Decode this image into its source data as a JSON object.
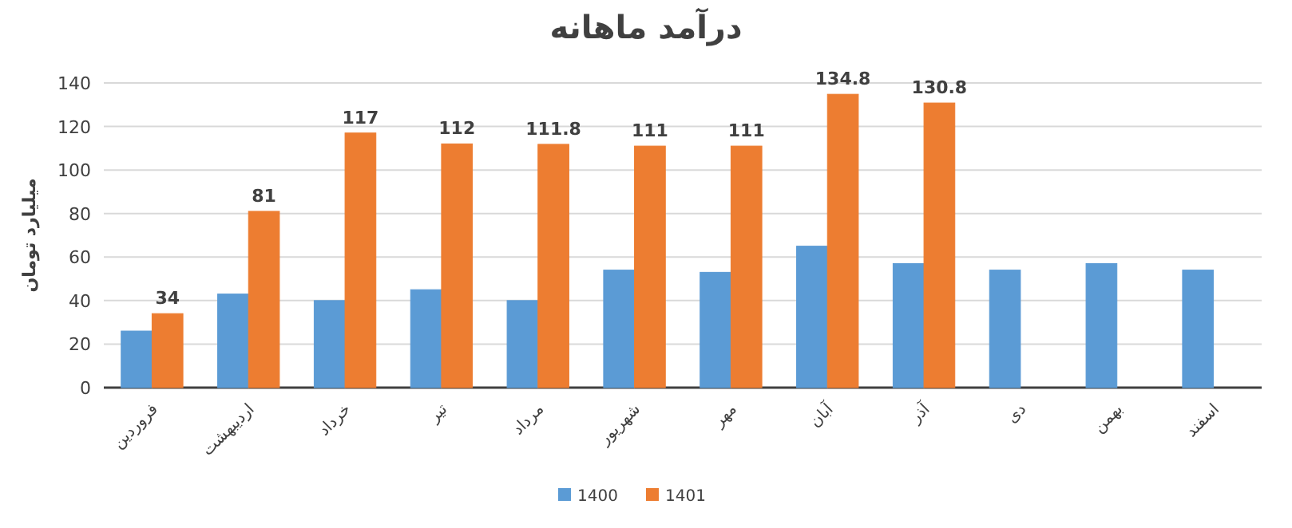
{
  "chart_data": {
    "type": "bar",
    "title": "درآمد ماهانه",
    "ylabel": "میلیارد تومان",
    "categories": [
      "فروردین",
      "اردیبهشت",
      "خرداد",
      "تیر",
      "مرداد",
      "شهریور",
      "مهر",
      "آبان",
      "آذر",
      "دی",
      "بهمن",
      "اسفند"
    ],
    "series": [
      {
        "name": "1400",
        "color": "#5b9bd5",
        "values": [
          26,
          43,
          40,
          45,
          40,
          54,
          53,
          65,
          57,
          54,
          57,
          54
        ]
      },
      {
        "name": "1401",
        "color": "#ed7d31",
        "values": [
          34,
          81,
          117,
          112,
          111.8,
          111,
          111,
          134.8,
          130.8,
          null,
          null,
          null
        ],
        "value_labels": [
          "34",
          "81",
          "117",
          "112",
          "111.8",
          "111",
          "111",
          "134.8",
          "130.8",
          null,
          null,
          null
        ]
      }
    ],
    "ylim": [
      0,
      140
    ],
    "yticks": [
      0,
      20,
      40,
      60,
      80,
      100,
      120,
      140
    ],
    "grid": "y",
    "legend": "bottom"
  }
}
